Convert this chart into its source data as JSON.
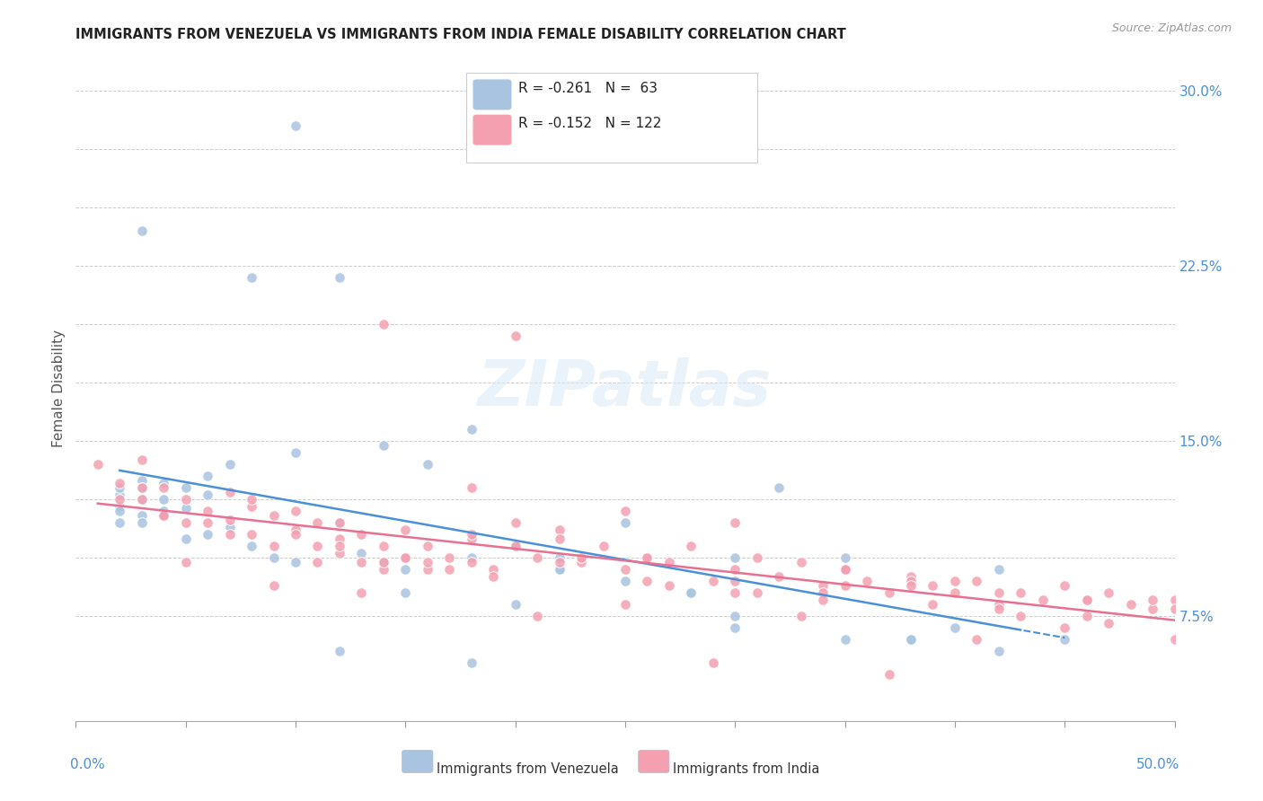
{
  "title": "IMMIGRANTS FROM VENEZUELA VS IMMIGRANTS FROM INDIA FEMALE DISABILITY CORRELATION CHART",
  "source": "Source: ZipAtlas.com",
  "ylabel": "Female Disability",
  "xlim": [
    0.0,
    0.5
  ],
  "ylim": [
    0.03,
    0.315
  ],
  "venezuela_color": "#a8c4e0",
  "india_color": "#f4a0b0",
  "venezuela_line_color": "#4a90d9",
  "india_line_color": "#e87090",
  "venezuela_R": -0.261,
  "venezuela_N": 63,
  "india_R": -0.152,
  "india_N": 122,
  "legend_label_venezuela": "Immigrants from Venezuela",
  "legend_label_india": "Immigrants from India",
  "watermark": "ZIPatlas",
  "venezuela_x": [
    0.02,
    0.03,
    0.04,
    0.02,
    0.03,
    0.02,
    0.03,
    0.04,
    0.05,
    0.06,
    0.03,
    0.04,
    0.05,
    0.02,
    0.03,
    0.06,
    0.07,
    0.08,
    0.09,
    0.1,
    0.12,
    0.13,
    0.14,
    0.15,
    0.16,
    0.18,
    0.2,
    0.22,
    0.25,
    0.28,
    0.3,
    0.35,
    0.38,
    0.42,
    0.45,
    0.02,
    0.03,
    0.04,
    0.05,
    0.06,
    0.07,
    0.08,
    0.1,
    0.12,
    0.15,
    0.18,
    0.2,
    0.22,
    0.25,
    0.28,
    0.3,
    0.32,
    0.35,
    0.38,
    0.4,
    0.1,
    0.12,
    0.14,
    0.18,
    0.22,
    0.3,
    0.35,
    0.42
  ],
  "venezuela_y": [
    0.127,
    0.133,
    0.12,
    0.115,
    0.13,
    0.122,
    0.118,
    0.125,
    0.108,
    0.11,
    0.24,
    0.118,
    0.13,
    0.12,
    0.115,
    0.135,
    0.14,
    0.105,
    0.1,
    0.098,
    0.115,
    0.102,
    0.098,
    0.095,
    0.14,
    0.1,
    0.105,
    0.095,
    0.115,
    0.085,
    0.1,
    0.095,
    0.065,
    0.095,
    0.065,
    0.13,
    0.125,
    0.132,
    0.121,
    0.127,
    0.113,
    0.22,
    0.145,
    0.06,
    0.085,
    0.055,
    0.08,
    0.1,
    0.09,
    0.085,
    0.075,
    0.13,
    0.1,
    0.065,
    0.07,
    0.285,
    0.22,
    0.148,
    0.155,
    0.095,
    0.07,
    0.065,
    0.06
  ],
  "india_x": [
    0.01,
    0.02,
    0.03,
    0.03,
    0.04,
    0.04,
    0.05,
    0.05,
    0.06,
    0.07,
    0.07,
    0.08,
    0.08,
    0.09,
    0.09,
    0.1,
    0.1,
    0.11,
    0.11,
    0.12,
    0.12,
    0.12,
    0.13,
    0.13,
    0.14,
    0.14,
    0.15,
    0.15,
    0.16,
    0.16,
    0.17,
    0.18,
    0.18,
    0.19,
    0.2,
    0.2,
    0.21,
    0.22,
    0.23,
    0.24,
    0.25,
    0.26,
    0.27,
    0.28,
    0.29,
    0.3,
    0.31,
    0.32,
    0.33,
    0.34,
    0.35,
    0.36,
    0.37,
    0.38,
    0.39,
    0.4,
    0.41,
    0.42,
    0.43,
    0.44,
    0.45,
    0.46,
    0.47,
    0.48,
    0.49,
    0.5,
    0.14,
    0.2,
    0.25,
    0.3,
    0.35,
    0.4,
    0.04,
    0.08,
    0.12,
    0.16,
    0.18,
    0.22,
    0.26,
    0.3,
    0.34,
    0.38,
    0.42,
    0.46,
    0.02,
    0.06,
    0.1,
    0.14,
    0.18,
    0.22,
    0.26,
    0.3,
    0.34,
    0.38,
    0.42,
    0.46,
    0.5,
    0.03,
    0.07,
    0.11,
    0.15,
    0.19,
    0.23,
    0.27,
    0.31,
    0.35,
    0.39,
    0.43,
    0.47,
    0.05,
    0.09,
    0.13,
    0.17,
    0.21,
    0.25,
    0.29,
    0.33,
    0.37,
    0.41,
    0.45,
    0.49,
    0.5
  ],
  "india_y": [
    0.14,
    0.132,
    0.125,
    0.142,
    0.13,
    0.118,
    0.125,
    0.115,
    0.12,
    0.116,
    0.128,
    0.122,
    0.11,
    0.118,
    0.105,
    0.112,
    0.12,
    0.105,
    0.115,
    0.108,
    0.102,
    0.115,
    0.098,
    0.11,
    0.105,
    0.095,
    0.1,
    0.112,
    0.095,
    0.105,
    0.1,
    0.098,
    0.108,
    0.095,
    0.105,
    0.115,
    0.1,
    0.112,
    0.098,
    0.105,
    0.095,
    0.1,
    0.098,
    0.105,
    0.09,
    0.095,
    0.1,
    0.092,
    0.098,
    0.088,
    0.095,
    0.09,
    0.085,
    0.092,
    0.088,
    0.085,
    0.09,
    0.08,
    0.085,
    0.082,
    0.088,
    0.082,
    0.085,
    0.08,
    0.078,
    0.082,
    0.2,
    0.195,
    0.12,
    0.115,
    0.095,
    0.09,
    0.118,
    0.125,
    0.105,
    0.098,
    0.13,
    0.108,
    0.1,
    0.09,
    0.085,
    0.09,
    0.085,
    0.082,
    0.125,
    0.115,
    0.11,
    0.098,
    0.11,
    0.098,
    0.09,
    0.085,
    0.082,
    0.088,
    0.078,
    0.075,
    0.078,
    0.13,
    0.11,
    0.098,
    0.1,
    0.092,
    0.1,
    0.088,
    0.085,
    0.088,
    0.08,
    0.075,
    0.072,
    0.098,
    0.088,
    0.085,
    0.095,
    0.075,
    0.08,
    0.055,
    0.075,
    0.05,
    0.065,
    0.07,
    0.082,
    0.065
  ]
}
